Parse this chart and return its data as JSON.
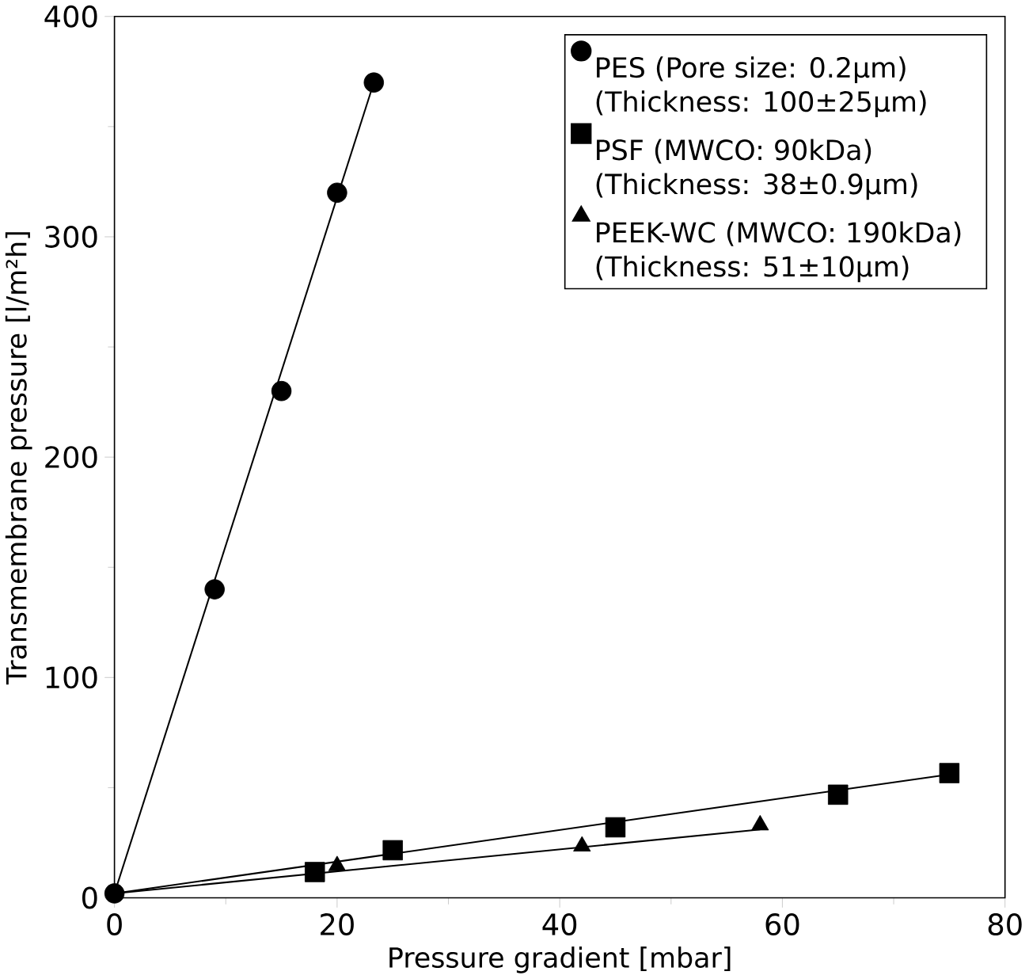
{
  "chart_data": {
    "type": "scatter",
    "xlabel": "Pressure gradient [mbar]",
    "ylabel": "Transmembrane pressure [l/m²h]",
    "xlim": [
      0,
      80
    ],
    "ylim": [
      0,
      400
    ],
    "xticks": [
      0,
      20,
      40,
      60,
      80
    ],
    "yticks": [
      0,
      100,
      200,
      300,
      400
    ],
    "grid": false,
    "legend": "top right",
    "series": [
      {
        "name": "PES (Pore size: 0.2µm) (Thickness: 100±25µm)",
        "color": "#000000",
        "marker": "circle",
        "x": [
          0,
          9,
          15,
          20,
          23.3
        ],
        "values": [
          2,
          140,
          230,
          320,
          370
        ]
      },
      {
        "name": "PSF (MWCO: 90kDa) (Thickness: 38±0.9µm)",
        "color": "#000000",
        "marker": "square",
        "x": [
          18,
          25,
          45,
          65,
          75
        ],
        "values": [
          11.7,
          21.6,
          32,
          46.8,
          56.6
        ]
      },
      {
        "name": "PEEK-WC (MWCO: 190kDa) (Thickness: 51±10µm)",
        "color": "#000000",
        "marker": "triangle",
        "x": [
          20,
          42,
          58
        ],
        "values": [
          14.5,
          23.4,
          33
        ]
      },
      {
        "type": "line",
        "color": "#000000",
        "marker": "none",
        "line_style": "solid",
        "x": [
          0,
          23.3
        ],
        "values": [
          2,
          370
        ]
      },
      {
        "type": "line",
        "color": "#000000",
        "marker": "none",
        "line_style": "solid",
        "x": [
          0,
          75
        ],
        "values": [
          2,
          56
        ]
      },
      {
        "type": "line",
        "color": "#000000",
        "marker": "none",
        "line_style": "solid",
        "x": [
          0,
          58
        ],
        "values": [
          2,
          31
        ]
      }
    ]
  }
}
